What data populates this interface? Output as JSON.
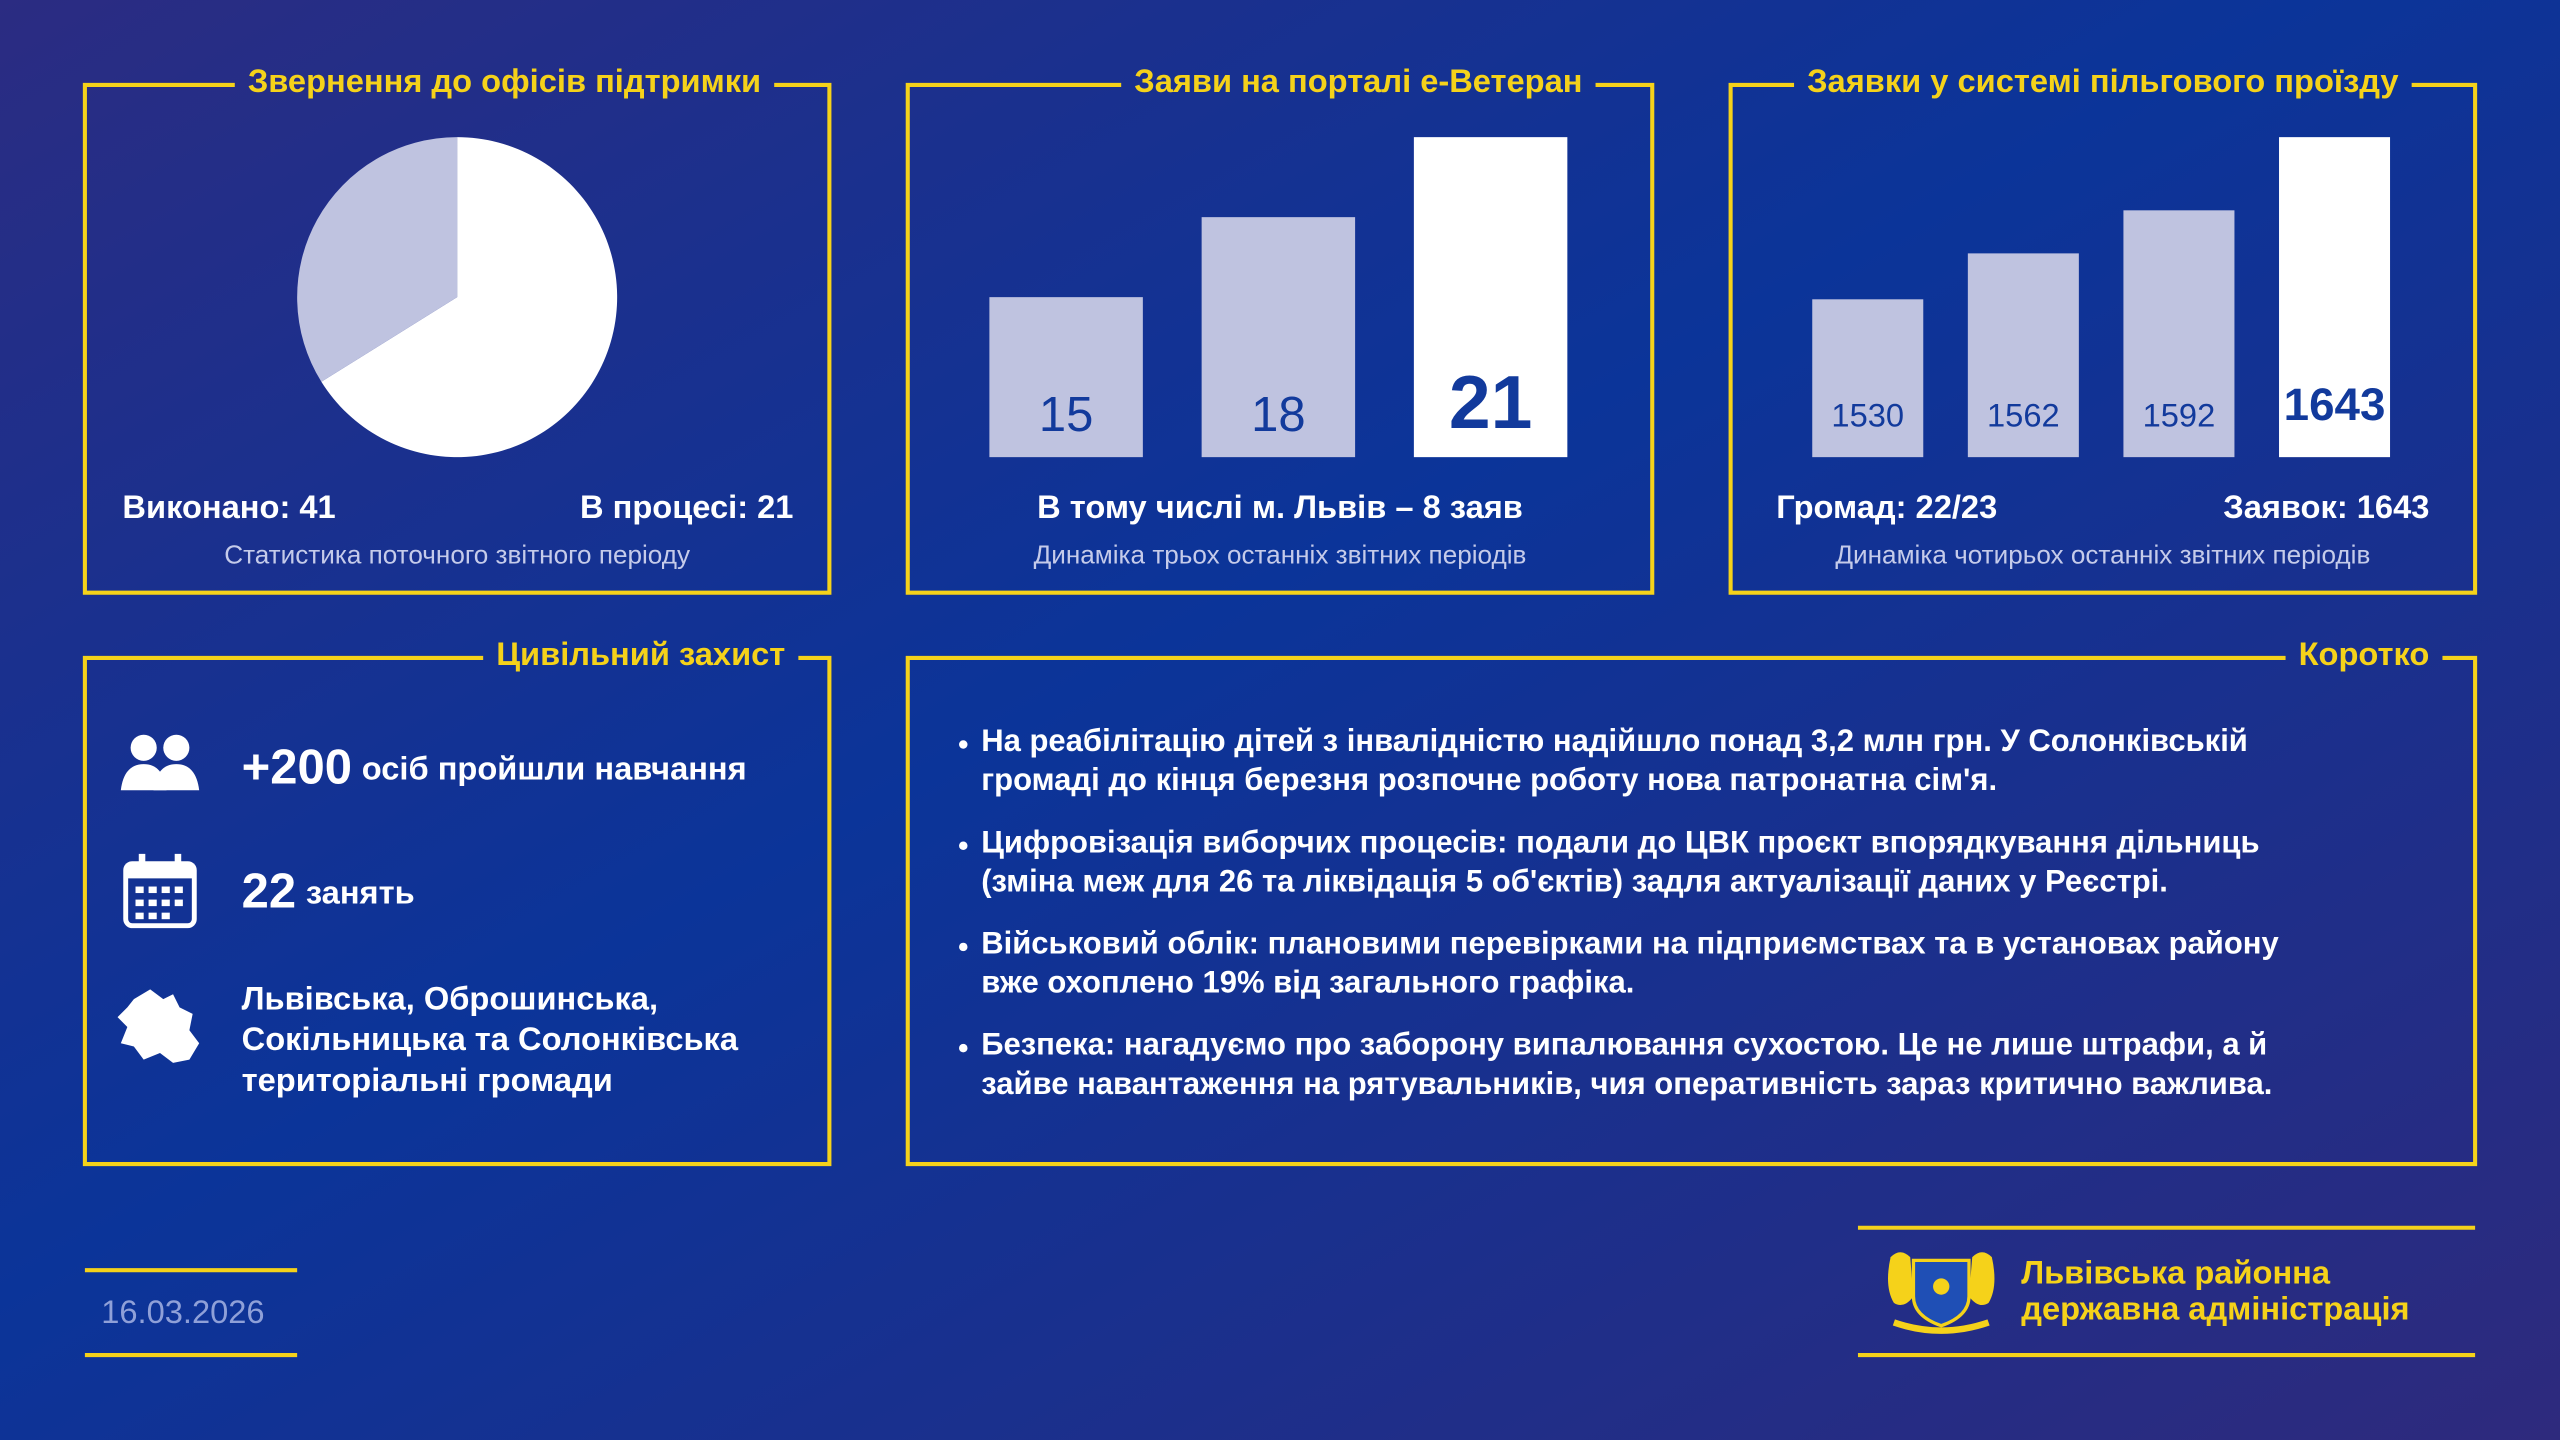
{
  "chart_data": [
    {
      "type": "pie",
      "title": "Звернення до офісів підтримки",
      "values": [
        41,
        21
      ],
      "value_labels": [
        "Виконано: 41",
        "В процесі: 21"
      ],
      "colors": [
        "#ffffff",
        "#bfc3e0"
      ],
      "subtitle": "Статистика поточного звітного періоду"
    },
    {
      "type": "bar",
      "title": "Заяви на порталі e-Ветеран",
      "categories": [
        null,
        null,
        null
      ],
      "values": [
        15,
        18,
        21
      ],
      "colors": [
        "#bfc3e0",
        "#bfc3e0",
        "#ffffff"
      ],
      "ylim": [
        9,
        21
      ],
      "note": "В тому числі м. Львів – 8 заяв",
      "subtitle": "Динаміка трьох останніх звітних періодів"
    },
    {
      "type": "bar",
      "title": "Заявки у системі пільгового проїзду",
      "categories": [
        null,
        null,
        null,
        null
      ],
      "values": [
        1530,
        1562,
        1592,
        1643
      ],
      "colors": [
        "#bfc3e0",
        "#bfc3e0",
        "#bfc3e0",
        "#ffffff"
      ],
      "ylim": [
        1420,
        1643
      ],
      "notes": [
        "Громад: 22/23",
        "Заявок: 1643"
      ],
      "subtitle": "Динаміка чотирьох останніх звітних періодів"
    }
  ],
  "civil_defense": {
    "title": "Цивільний захист",
    "items": [
      {
        "value": "+200",
        "text": "осіб пройшли навчання"
      },
      {
        "value": "22",
        "text": "занять"
      },
      {
        "lines": [
          "Львівська, Оброшинська,",
          "Сокільницька та Солонківська",
          "територіальні громади"
        ]
      }
    ]
  },
  "brief": {
    "title": "Коротко",
    "items": [
      [
        "На реабілітацію дітей з інвалідністю надійшло понад 3,2 млн грн. У Солонківській",
        "громаді до кінця березня розпочне роботу нова патронатна сім'я."
      ],
      [
        "Цифровізація виборчих процесів: подали до ЦВК проєкт впорядкування дільниць",
        "(зміна меж для 26 та ліквідація 5 об'єктів) задля актуалізації даних у Реєстрі."
      ],
      [
        "Військовий облік: плановими перевірками на підприємствах та в установах району",
        "вже охоплено 19% від загального графіка."
      ],
      [
        "Безпека: нагадуємо про заборону випалювання сухостою. Це не лише штрафи, а й",
        "зайве навантаження на рятувальників, чия оперативність зараз критично важлива."
      ]
    ]
  },
  "date": "16.03.2026",
  "organization": [
    "Львівська районна",
    "державна адміністрація"
  ]
}
